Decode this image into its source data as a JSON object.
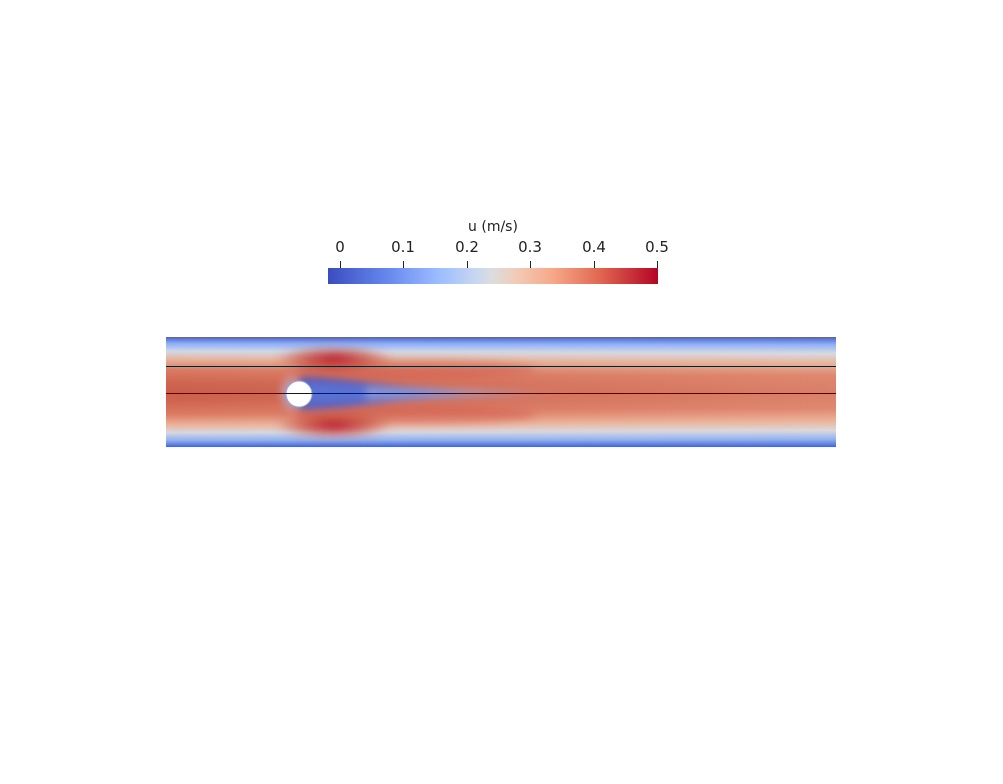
{
  "colorbar": {
    "title": "u (m/s)",
    "ticks": [
      "0",
      "0.1",
      "0.2",
      "0.3",
      "0.4",
      "0.5"
    ],
    "range": [
      0,
      0.5
    ],
    "colormap": "cool-to-warm",
    "low_color": "#3b4cc0",
    "mid_color": "#dddcdc",
    "high_color": "#b40426"
  },
  "field": {
    "quantity": "u",
    "obstacle": "circle"
  }
}
